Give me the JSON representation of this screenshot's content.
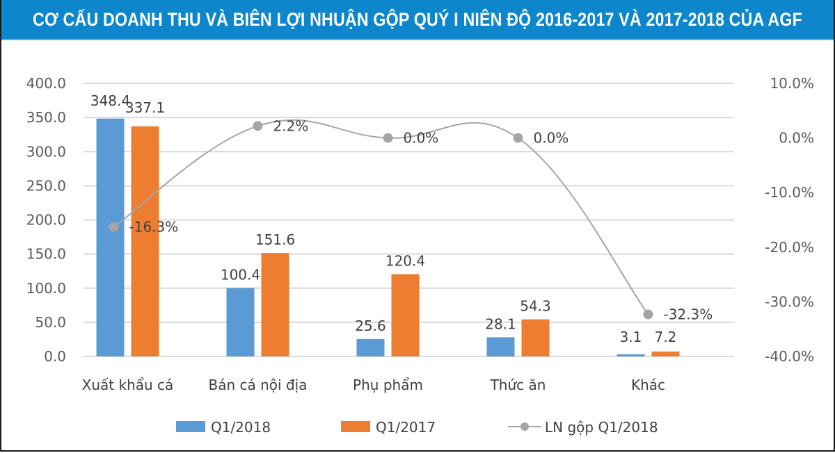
{
  "title": "CƠ CẤU DOANH THU VÀ BIÊN LỢI NHUẬN GỘP QUÝ I NIÊN ĐỘ 2016-2017 VÀ 2017-2018 CỦA AGF",
  "colors": {
    "title_bg": "#0d86cc",
    "q1_2018": "#5b9bd5",
    "q1_2017": "#ed7d31",
    "line": "#a5a5a5",
    "grid": "#d9d9d9"
  },
  "chart_data": {
    "type": "bar",
    "title": "CƠ CẤU DOANH THU VÀ BIÊN LỢI NHUẬN GỘP QUÝ I NIÊN ĐỘ 2016-2017 VÀ 2017-2018 CỦA AGF",
    "categories": [
      "Xuất khẩu cá",
      "Bán cá nội địa",
      "Phụ phẩm",
      "Thức ăn",
      "Khác"
    ],
    "series": [
      {
        "name": "Q1/2018",
        "type": "bar",
        "axis": "left",
        "values": [
          348.4,
          100.4,
          25.6,
          28.1,
          3.1
        ],
        "labels": [
          "348.4",
          "100.4",
          "25.6",
          "28.1",
          "3.1"
        ]
      },
      {
        "name": "Q1/2017",
        "type": "bar",
        "axis": "left",
        "values": [
          337.1,
          151.6,
          120.4,
          54.3,
          7.2
        ],
        "labels": [
          "337.1",
          "151.6",
          "120.4",
          "54.3",
          "7.2"
        ]
      },
      {
        "name": "LN gộp Q1/2018",
        "type": "line",
        "axis": "right",
        "values": [
          -16.3,
          2.2,
          0.0,
          0.0,
          -32.3
        ],
        "labels": [
          "-16.3%",
          "2.2%",
          "0.0%",
          "0.0%",
          "-32.3%"
        ]
      }
    ],
    "y_left": {
      "min": 0,
      "max": 400,
      "step": 50,
      "ticks": [
        "0.0",
        "50.0",
        "100.0",
        "150.0",
        "200.0",
        "250.0",
        "300.0",
        "350.0",
        "400.0"
      ]
    },
    "y_right": {
      "min": -40,
      "max": 10,
      "step": 10,
      "ticks": [
        "-40.0%",
        "-30.0%",
        "-20.0%",
        "-10.0%",
        "0.0%",
        "10.0%"
      ]
    },
    "grid": true,
    "legend_position": "bottom"
  }
}
